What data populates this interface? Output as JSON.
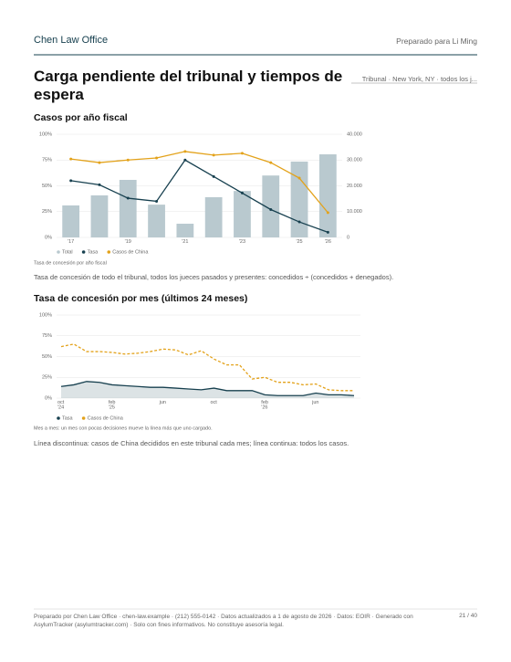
{
  "header": {
    "firm": "Chen Law Office",
    "prepared_for": "Preparado para Li Ming"
  },
  "title": "Carga pendiente del tribunal y tiempos de espera",
  "meta": "Tribunal · New York, NY · todos los j...",
  "chart_data": [
    {
      "type": "bar",
      "title": "Casos por año fiscal",
      "caption": "Tasa de concesión por año fiscal",
      "note": "Tasa de concesión de todo el tribunal, todos los jueces pasados y presentes: concedidos ÷ (concedidos + denegados).",
      "categories": [
        "'17",
        null,
        "'19",
        null,
        "'21",
        null,
        "'23",
        null,
        "'25",
        "'26"
      ],
      "ylim": [
        0,
        100
      ],
      "yticks": [
        {
          "value": 0,
          "label": "0%"
        },
        {
          "value": 25,
          "label": "25%"
        },
        {
          "value": 50,
          "label": "50%"
        },
        {
          "value": 75,
          "label": "75%"
        },
        {
          "value": 100,
          "label": "100%"
        }
      ],
      "y2lim": [
        0,
        40000
      ],
      "y2ticks": [
        0,
        {
          "value": 10000,
          "label": "10.000"
        },
        {
          "value": 20000,
          "label": "20.000"
        },
        {
          "value": 30000,
          "label": "30.000"
        },
        {
          "value": 40000,
          "label": "40.000"
        }
      ],
      "grid": true,
      "series": [
        {
          "name": "Total",
          "type": "bar",
          "axis": "y2",
          "color": "#b9c9cf",
          "values": [
            12400,
            16300,
            22300,
            12700,
            5300,
            15600,
            18000,
            24000,
            29400,
            32200
          ]
        },
        {
          "name": "Tasa",
          "type": "line",
          "axis": "y",
          "color": "#17404f",
          "values": [
            55,
            51,
            38,
            35,
            75,
            59,
            43,
            27,
            15,
            5
          ]
        },
        {
          "name": "Casos de China",
          "type": "line",
          "axis": "y2",
          "color": "#e3a21a",
          "values": [
            30400,
            29000,
            30000,
            30800,
            33300,
            31900,
            32600,
            29000,
            23000,
            9600
          ]
        }
      ]
    },
    {
      "type": "line",
      "title": "Tasa de concesión por mes (últimos 24 meses)",
      "caption": "Mes a mes: un mes con pocas decisiones mueve la línea más que uno cargado.",
      "note": "Línea discontinua: casos de China decididos en este tribunal cada mes; línea continua: todos los casos.",
      "categories": [
        "oct '24",
        null,
        null,
        null,
        "feb '25",
        null,
        null,
        null,
        "jun",
        null,
        null,
        null,
        "oct",
        null,
        null,
        null,
        "feb '26",
        null,
        null,
        null,
        "jun",
        null,
        null,
        null
      ],
      "ylim": [
        0,
        100
      ],
      "yticks": [
        {
          "value": 0,
          "label": "0%"
        },
        {
          "value": 25,
          "label": "25%"
        },
        {
          "value": 50,
          "label": "50%"
        },
        {
          "value": 75,
          "label": "75%"
        },
        {
          "value": 100,
          "label": "100%"
        }
      ],
      "grid": true,
      "series": [
        {
          "name": "Tasa",
          "area": true,
          "color": "#17404f",
          "values": [
            14,
            16,
            20,
            19,
            16,
            15,
            14,
            13,
            13,
            12,
            11,
            10,
            12,
            9,
            9,
            9,
            4,
            3,
            3,
            3,
            6,
            4,
            4,
            3
          ]
        },
        {
          "name": "Casos de China",
          "dashed": true,
          "color": "#e3a21a",
          "values": [
            62,
            65,
            56,
            56,
            55,
            53,
            54,
            56,
            59,
            58,
            52,
            57,
            47,
            40,
            40,
            23,
            25,
            19,
            19,
            16,
            17,
            10,
            9,
            9
          ]
        }
      ]
    }
  ],
  "footer": {
    "text": "Preparado por Chen Law Office · chen-law.example · (212) 555-0142 · Datos actualizados a 1 de agosto de 2026 · Datos: EOIR · Generado con AsylumTracker (asylumtracker.com) · Solo con fines informativos. No constituye asesoría legal.",
    "page": "21 / 40"
  }
}
